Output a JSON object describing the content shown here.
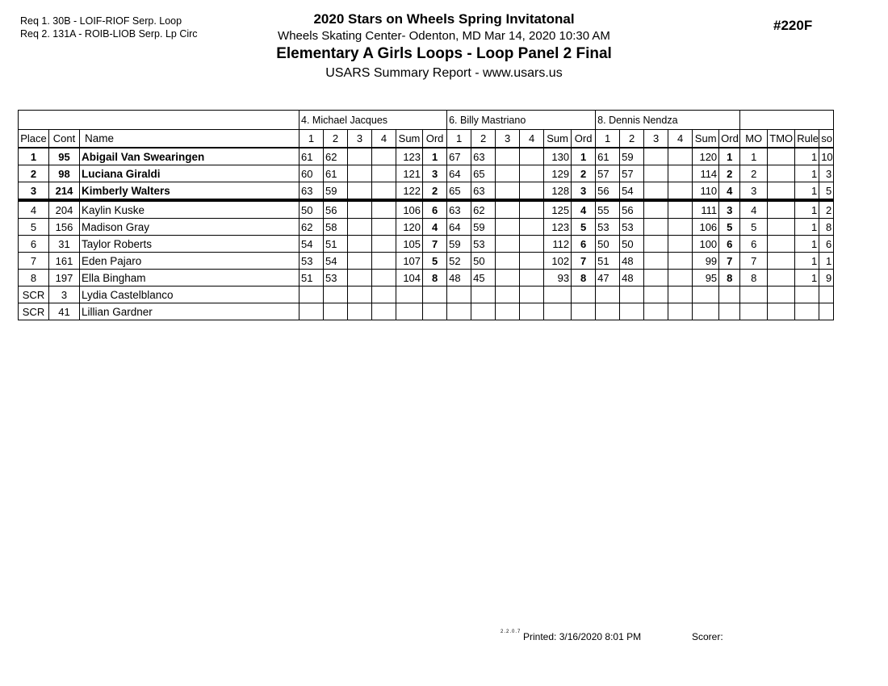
{
  "report": {
    "req_lines": [
      "Req  1.   30B - LOIF-RIOF Serp. Loop",
      "Req  2.   131A - ROIB-LIOB Serp. Lp Circ"
    ],
    "event_number": "#220F",
    "title": "2020 Stars on Wheels Spring Invitatonal",
    "venue_line": "Wheels Skating Center- Odenton, MD  Mar 14, 2020   10:30 AM",
    "event_title": "Elementary A Girls Loops - Loop Panel 2 Final",
    "report_type": "USARS Summary Report - www.usars.us",
    "footer": {
      "version": "2.2.0.7",
      "printed": "Printed:  3/16/2020  8:01 PM",
      "scorer_label": "Scorer:"
    }
  },
  "table": {
    "judges": [
      "4.  Michael Jacques",
      "6.  Billy Mastriano",
      "8.  Dennis Nendza"
    ],
    "header_labels": {
      "place": "Place",
      "cont": "Cont",
      "name": "Name",
      "judge_cols": [
        "1",
        "2",
        "3",
        "4",
        "Sum",
        "Ord"
      ],
      "tail": [
        "MO",
        "TMO",
        "Rule",
        "so"
      ]
    },
    "rows": [
      {
        "place": "1",
        "cont": "95",
        "name": "Abigail Van Swearingen",
        "medal": true,
        "sep": false,
        "judges": [
          [
            "61",
            "62",
            "",
            "",
            "123",
            "1"
          ],
          [
            "67",
            "63",
            "",
            "",
            "130",
            "1"
          ],
          [
            "61",
            "59",
            "",
            "",
            "120",
            "1"
          ]
        ],
        "mo": "1",
        "tmo": "",
        "rule": "1",
        "so": "10"
      },
      {
        "place": "2",
        "cont": "98",
        "name": "Luciana Giraldi",
        "medal": true,
        "sep": false,
        "judges": [
          [
            "60",
            "61",
            "",
            "",
            "121",
            "3"
          ],
          [
            "64",
            "65",
            "",
            "",
            "129",
            "2"
          ],
          [
            "57",
            "57",
            "",
            "",
            "114",
            "2"
          ]
        ],
        "mo": "2",
        "tmo": "",
        "rule": "1",
        "so": "3"
      },
      {
        "place": "3",
        "cont": "214",
        "name": "Kimberly Walters",
        "medal": true,
        "sep": true,
        "judges": [
          [
            "63",
            "59",
            "",
            "",
            "122",
            "2"
          ],
          [
            "65",
            "63",
            "",
            "",
            "128",
            "3"
          ],
          [
            "56",
            "54",
            "",
            "",
            "110",
            "4"
          ]
        ],
        "mo": "3",
        "tmo": "",
        "rule": "1",
        "so": "5"
      },
      {
        "place": "4",
        "cont": "204",
        "name": "Kaylin Kuske",
        "medal": false,
        "sep": false,
        "judges": [
          [
            "50",
            "56",
            "",
            "",
            "106",
            "6"
          ],
          [
            "63",
            "62",
            "",
            "",
            "125",
            "4"
          ],
          [
            "55",
            "56",
            "",
            "",
            "111",
            "3"
          ]
        ],
        "mo": "4",
        "tmo": "",
        "rule": "1",
        "so": "2"
      },
      {
        "place": "5",
        "cont": "156",
        "name": "Madison Gray",
        "medal": false,
        "sep": false,
        "judges": [
          [
            "62",
            "58",
            "",
            "",
            "120",
            "4"
          ],
          [
            "64",
            "59",
            "",
            "",
            "123",
            "5"
          ],
          [
            "53",
            "53",
            "",
            "",
            "106",
            "5"
          ]
        ],
        "mo": "5",
        "tmo": "",
        "rule": "1",
        "so": "8"
      },
      {
        "place": "6",
        "cont": "31",
        "name": "Taylor Roberts",
        "medal": false,
        "sep": false,
        "judges": [
          [
            "54",
            "51",
            "",
            "",
            "105",
            "7"
          ],
          [
            "59",
            "53",
            "",
            "",
            "112",
            "6"
          ],
          [
            "50",
            "50",
            "",
            "",
            "100",
            "6"
          ]
        ],
        "mo": "6",
        "tmo": "",
        "rule": "1",
        "so": "6"
      },
      {
        "place": "7",
        "cont": "161",
        "name": "Eden Pajaro",
        "medal": false,
        "sep": false,
        "judges": [
          [
            "53",
            "54",
            "",
            "",
            "107",
            "5"
          ],
          [
            "52",
            "50",
            "",
            "",
            "102",
            "7"
          ],
          [
            "51",
            "48",
            "",
            "",
            "99",
            "7"
          ]
        ],
        "mo": "7",
        "tmo": "",
        "rule": "1",
        "so": "1"
      },
      {
        "place": "8",
        "cont": "197",
        "name": "Ella Bingham",
        "medal": false,
        "sep": false,
        "judges": [
          [
            "51",
            "53",
            "",
            "",
            "104",
            "8"
          ],
          [
            "48",
            "45",
            "",
            "",
            "93",
            "8"
          ],
          [
            "47",
            "48",
            "",
            "",
            "95",
            "8"
          ]
        ],
        "mo": "8",
        "tmo": "",
        "rule": "1",
        "so": "9"
      },
      {
        "place": "SCR",
        "cont": "3",
        "name": "Lydia Castelblanco",
        "medal": false,
        "sep": false,
        "judges": [
          [
            "",
            "",
            "",
            "",
            "",
            ""
          ],
          [
            "",
            "",
            "",
            "",
            "",
            ""
          ],
          [
            "",
            "",
            "",
            "",
            "",
            ""
          ]
        ],
        "mo": "",
        "tmo": "",
        "rule": "",
        "so": ""
      },
      {
        "place": "SCR",
        "cont": "41",
        "name": "Lillian Gardner",
        "medal": false,
        "sep": false,
        "judges": [
          [
            "",
            "",
            "",
            "",
            "",
            ""
          ],
          [
            "",
            "",
            "",
            "",
            "",
            ""
          ],
          [
            "",
            "",
            "",
            "",
            "",
            ""
          ]
        ],
        "mo": "",
        "tmo": "",
        "rule": "",
        "so": ""
      }
    ]
  }
}
